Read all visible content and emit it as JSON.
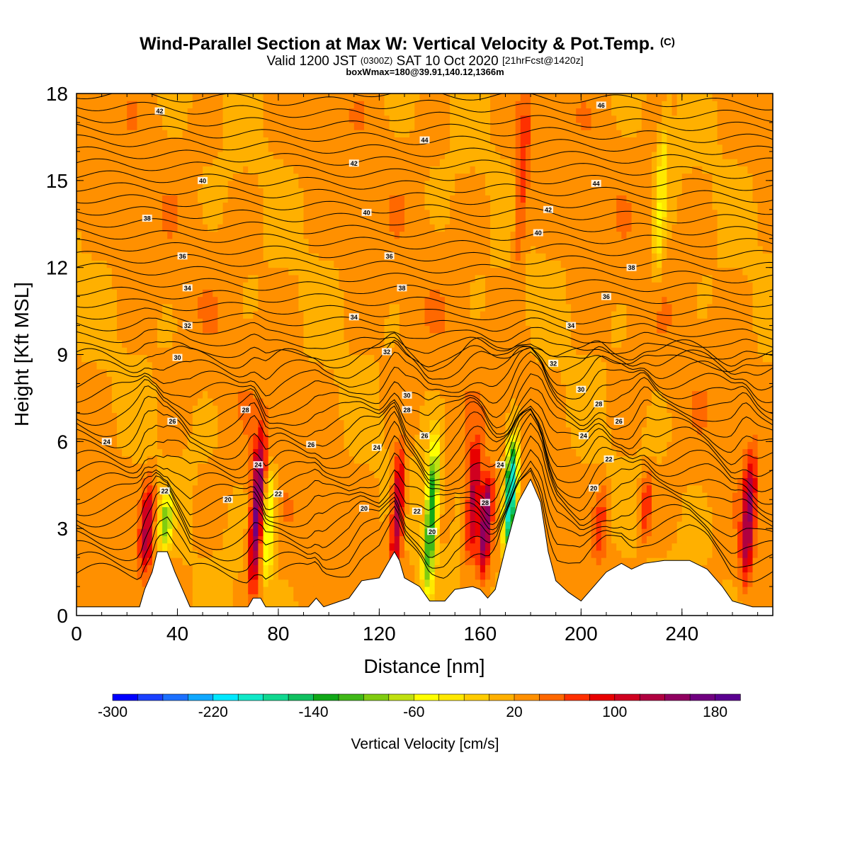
{
  "header": {
    "title": "Wind-Parallel Section at Max W: Vertical Velocity & Pot.Temp.",
    "title_mark": "(C)",
    "subtitle_a": "Valid 1200 JST",
    "subtitle_b": "(0300Z)",
    "subtitle_c": "SAT 10 Oct 2020",
    "subtitle_d": "[21hrFcst@1420z]",
    "subtitle_line3": "boxWmax=180@39.91,140.12,1366m"
  },
  "colorbar": {
    "label": "Vertical Velocity [cm/s]",
    "tick_labels": [
      "-300",
      "-220",
      "-140",
      "-60",
      "20",
      "100",
      "180"
    ],
    "min": -300,
    "max": 200,
    "step": 20,
    "colors": [
      "#0000ff",
      "#1a40ff",
      "#1c70ff",
      "#10a8ff",
      "#00e8ff",
      "#10e8c8",
      "#10d890",
      "#10c060",
      "#10a818",
      "#40b818",
      "#80cc10",
      "#c0e010",
      "#ffff00",
      "#ffe800",
      "#ffcc00",
      "#ffb000",
      "#ff9000",
      "#ff6800",
      "#ff3000",
      "#e80000",
      "#d00020",
      "#b00040",
      "#900060",
      "#700080",
      "#5a0090"
    ]
  },
  "chart_data": {
    "type": "heatmap",
    "title": "Wind-Parallel Section at Max W: Vertical Velocity & Pot.Temp.",
    "xlabel": "Distance [nm]",
    "ylabel": "Height [Kft MSL]",
    "xlim": [
      0,
      276
    ],
    "ylim": [
      0,
      18
    ],
    "x_ticks": [
      0,
      40,
      80,
      120,
      160,
      200,
      240
    ],
    "y_ticks": [
      0,
      3,
      6,
      9,
      12,
      15,
      18
    ],
    "x_tick_labels": [
      "0",
      "40",
      "80",
      "120",
      "160",
      "200",
      "240"
    ],
    "y_tick_labels": [
      "0",
      "3",
      "6",
      "9",
      "12",
      "15",
      "18"
    ],
    "filled_variable": "Vertical Velocity [cm/s]",
    "contour_variable": "Potential temperature (C)",
    "background_w": 25,
    "w_features": [
      {
        "x": 27,
        "y0": 1.5,
        "y1": 4.6,
        "w": 130
      },
      {
        "x": 35,
        "y0": 2.3,
        "y1": 4.1,
        "w": -90
      },
      {
        "x": 70,
        "y0": 1.0,
        "y1": 6.2,
        "w": 175
      },
      {
        "x": 75,
        "y0": 1.2,
        "y1": 5.0,
        "w": -70
      },
      {
        "x": 126,
        "y0": 1.5,
        "y1": 5.7,
        "w": 140
      },
      {
        "x": 139,
        "y0": 0.8,
        "y1": 6.0,
        "w": -140
      },
      {
        "x": 156,
        "y0": 2.0,
        "y1": 6.0,
        "w": 130
      },
      {
        "x": 161,
        "y0": 1.5,
        "y1": 4.8,
        "w": 170
      },
      {
        "x": 171,
        "y0": 2.3,
        "y1": 6.0,
        "w": -230
      },
      {
        "x": 175,
        "y0": 12.0,
        "y1": 18.0,
        "w": 75
      },
      {
        "x": 207,
        "y0": 1.8,
        "y1": 4.5,
        "w": 70
      },
      {
        "x": 225,
        "y0": 2.5,
        "y1": 5.0,
        "w": 80
      },
      {
        "x": 265,
        "y0": 1.2,
        "y1": 5.5,
        "w": 140
      },
      {
        "x": 230,
        "y0": 11.5,
        "y1": 17.0,
        "w": -35
      }
    ],
    "terrain": [
      [
        0,
        0.3
      ],
      [
        25,
        0.3
      ],
      [
        27,
        0.9
      ],
      [
        30,
        1.5
      ],
      [
        32,
        2.2
      ],
      [
        36,
        2.2
      ],
      [
        39,
        1.5
      ],
      [
        42,
        0.9
      ],
      [
        45,
        0.3
      ],
      [
        68,
        0.3
      ],
      [
        70,
        0.6
      ],
      [
        73,
        0.6
      ],
      [
        75,
        0.3
      ],
      [
        92,
        0.3
      ],
      [
        95,
        0.6
      ],
      [
        98,
        0.3
      ],
      [
        108,
        0.6
      ],
      [
        113,
        1.2
      ],
      [
        120,
        1.3
      ],
      [
        124,
        1.9
      ],
      [
        126,
        2.2
      ],
      [
        128,
        1.9
      ],
      [
        130,
        1.3
      ],
      [
        136,
        1.0
      ],
      [
        140,
        0.5
      ],
      [
        146,
        0.5
      ],
      [
        150,
        0.9
      ],
      [
        157,
        1.0
      ],
      [
        160,
        0.9
      ],
      [
        163,
        0.6
      ],
      [
        166,
        0.9
      ],
      [
        170,
        2.3
      ],
      [
        175,
        3.9
      ],
      [
        180,
        4.7
      ],
      [
        184,
        3.9
      ],
      [
        187,
        2.2
      ],
      [
        190,
        1.2
      ],
      [
        195,
        0.8
      ],
      [
        200,
        0.5
      ],
      [
        203,
        0.8
      ],
      [
        210,
        1.5
      ],
      [
        216,
        1.8
      ],
      [
        220,
        1.6
      ],
      [
        225,
        1.8
      ],
      [
        233,
        1.9
      ],
      [
        243,
        1.9
      ],
      [
        250,
        1.6
      ],
      [
        256,
        1.0
      ],
      [
        260,
        0.5
      ],
      [
        268,
        0.3
      ],
      [
        276,
        0.3
      ]
    ],
    "theta_levels": [
      {
        "value": 20,
        "label": "20"
      },
      {
        "value": 22,
        "label": "22"
      },
      {
        "value": 24,
        "label": "24"
      },
      {
        "value": 26,
        "label": "26"
      },
      {
        "value": 28,
        "label": "28"
      },
      {
        "value": 30,
        "label": "30"
      },
      {
        "value": 32,
        "label": "32"
      },
      {
        "value": 34,
        "label": "34"
      },
      {
        "value": 36,
        "label": "36"
      },
      {
        "value": 38,
        "label": "38"
      },
      {
        "value": 40,
        "label": "40"
      },
      {
        "value": 42,
        "label": "42"
      },
      {
        "value": 44,
        "label": "44"
      },
      {
        "value": 46,
        "label": "46"
      }
    ],
    "theta_labels": [
      {
        "x": 33,
        "y": 17.4,
        "text": "42"
      },
      {
        "x": 50,
        "y": 15.0,
        "text": "40"
      },
      {
        "x": 28,
        "y": 13.7,
        "text": "38"
      },
      {
        "x": 42,
        "y": 12.4,
        "text": "36"
      },
      {
        "x": 44,
        "y": 11.3,
        "text": "34"
      },
      {
        "x": 44,
        "y": 10.0,
        "text": "32"
      },
      {
        "x": 40,
        "y": 8.9,
        "text": "30"
      },
      {
        "x": 38,
        "y": 6.7,
        "text": "26"
      },
      {
        "x": 12,
        "y": 6.0,
        "text": "24"
      },
      {
        "x": 35,
        "y": 4.3,
        "text": "22"
      },
      {
        "x": 67,
        "y": 7.1,
        "text": "28"
      },
      {
        "x": 72,
        "y": 5.2,
        "text": "24"
      },
      {
        "x": 80,
        "y": 4.2,
        "text": "22"
      },
      {
        "x": 60,
        "y": 4.0,
        "text": "20"
      },
      {
        "x": 93,
        "y": 5.9,
        "text": "26"
      },
      {
        "x": 110,
        "y": 15.6,
        "text": "42"
      },
      {
        "x": 115,
        "y": 13.9,
        "text": "40"
      },
      {
        "x": 124,
        "y": 12.4,
        "text": "36"
      },
      {
        "x": 129,
        "y": 11.3,
        "text": "38"
      },
      {
        "x": 110,
        "y": 10.3,
        "text": "34"
      },
      {
        "x": 123,
        "y": 9.1,
        "text": "32"
      },
      {
        "x": 131,
        "y": 7.6,
        "text": "30"
      },
      {
        "x": 131,
        "y": 7.1,
        "text": "28"
      },
      {
        "x": 119,
        "y": 5.8,
        "text": "24"
      },
      {
        "x": 114,
        "y": 3.7,
        "text": "20"
      },
      {
        "x": 138,
        "y": 6.2,
        "text": "26"
      },
      {
        "x": 135,
        "y": 3.6,
        "text": "22"
      },
      {
        "x": 141,
        "y": 2.9,
        "text": "20"
      },
      {
        "x": 138,
        "y": 16.4,
        "text": "44"
      },
      {
        "x": 168,
        "y": 5.2,
        "text": "24"
      },
      {
        "x": 162,
        "y": 3.9,
        "text": "28"
      },
      {
        "x": 187,
        "y": 14.0,
        "text": "42"
      },
      {
        "x": 183,
        "y": 13.2,
        "text": "40"
      },
      {
        "x": 206,
        "y": 14.9,
        "text": "44"
      },
      {
        "x": 208,
        "y": 17.6,
        "text": "46"
      },
      {
        "x": 220,
        "y": 12.0,
        "text": "38"
      },
      {
        "x": 210,
        "y": 11.0,
        "text": "36"
      },
      {
        "x": 196,
        "y": 10.0,
        "text": "34"
      },
      {
        "x": 189,
        "y": 8.7,
        "text": "32"
      },
      {
        "x": 200,
        "y": 7.8,
        "text": "30"
      },
      {
        "x": 207,
        "y": 7.3,
        "text": "28"
      },
      {
        "x": 215,
        "y": 6.7,
        "text": "26"
      },
      {
        "x": 201,
        "y": 6.2,
        "text": "24"
      },
      {
        "x": 211,
        "y": 5.4,
        "text": "22"
      },
      {
        "x": 205,
        "y": 4.4,
        "text": "20"
      }
    ]
  }
}
